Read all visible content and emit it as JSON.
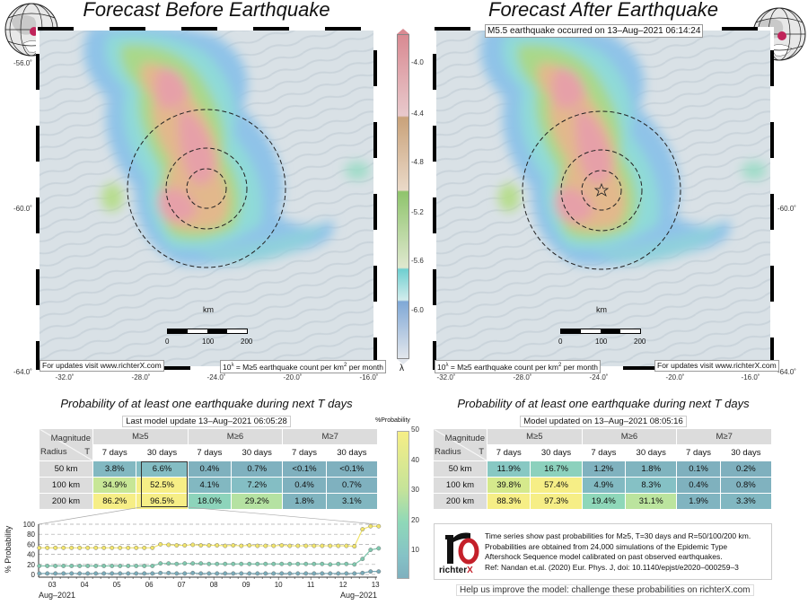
{
  "left": {
    "title": "Forecast Before Earthquake",
    "updates_note": "For updates visit www.richterX.com",
    "lambda_note_prefix": "10",
    "lambda_note_sup": "λ",
    "lambda_note_text": " = M≥5 earthquake count per km",
    "lambda_note_sup2": "2",
    "lambda_note_end": " per month",
    "prob_title": "Probability of at least one earthquake during next T days",
    "model_update": "Last model update 13–Aug–2021 06:05:28",
    "table": {
      "corner_top": "Magnitude",
      "corner_radius": "Radius",
      "corner_t": "T",
      "magnitudes": [
        "M≥5",
        "M≥6",
        "M≥7"
      ],
      "periods": [
        "7 days",
        "30 days",
        "7 days",
        "30 days",
        "7 days",
        "30 days"
      ],
      "rows": [
        {
          "radius": "50 km",
          "values": [
            "3.8%",
            "6.6%",
            "0.4%",
            "0.7%",
            "<0.1%",
            "<0.1%"
          ]
        },
        {
          "radius": "100 km",
          "values": [
            "34.9%",
            "52.5%",
            "4.1%",
            "7.2%",
            "0.4%",
            "0.7%"
          ]
        },
        {
          "radius": "200 km",
          "values": [
            "86.2%",
            "96.5%",
            "18.0%",
            "29.2%",
            "1.8%",
            "3.1%"
          ]
        }
      ]
    }
  },
  "right": {
    "title": "Forecast After Earthquake",
    "event_note": "M5.5 earthquake occurred on 13–Aug–2021 06:14:24",
    "updates_note": "For updates visit www.richterX.com",
    "prob_title": "Probability of at least one earthquake during next T days",
    "model_update": "Model updated on 13–Aug–2021 08:05:16",
    "table": {
      "rows": [
        {
          "radius": "50 km",
          "values": [
            "11.9%",
            "16.7%",
            "1.2%",
            "1.8%",
            "0.1%",
            "0.2%"
          ]
        },
        {
          "radius": "100 km",
          "values": [
            "39.8%",
            "57.4%",
            "4.9%",
            "8.3%",
            "0.4%",
            "0.8%"
          ]
        },
        {
          "radius": "200 km",
          "values": [
            "88.3%",
            "97.3%",
            "19.4%",
            "31.1%",
            "1.9%",
            "3.3%"
          ]
        }
      ]
    }
  },
  "map_axes": {
    "lon_labels": [
      "-32.0˚",
      "-28.0˚",
      "-24.0˚",
      "-20.0˚",
      "-16.0˚"
    ],
    "lat_labels": [
      "-56.0˚",
      "-60.0˚",
      "-64.0˚"
    ],
    "scale_unit": "km",
    "scale_labels": [
      "0",
      "100",
      "200"
    ]
  },
  "lambda_colorbar": {
    "label": "λ",
    "ticks": [
      "-4.0",
      "-4.4",
      "-4.8",
      "-5.2",
      "-5.6",
      "-6.0"
    ]
  },
  "prob_colorbar": {
    "label": "%Probability",
    "ticks": [
      "50",
      "40",
      "30",
      "20",
      "10"
    ]
  },
  "chart_data": {
    "type": "line",
    "ylabel": "% Probability",
    "ylim": [
      0,
      100
    ],
    "yticks": [
      "0",
      "20",
      "40",
      "60",
      "80",
      "100"
    ],
    "xticks": [
      "03",
      "04",
      "05",
      "06",
      "07",
      "08",
      "09",
      "10",
      "11",
      "12",
      "13"
    ],
    "xtick_days": [
      3,
      4,
      5,
      6,
      7,
      8,
      9,
      10,
      11,
      12,
      13
    ],
    "xlabel_left": "Aug–2021",
    "xlabel_right": "Aug–2021",
    "x_start_day": 2.6,
    "x_step_days": 0.25,
    "grid": true,
    "series": [
      {
        "name": "R=200 km",
        "color": "#f2e56b",
        "values": [
          53,
          53,
          53,
          53,
          53,
          53,
          53,
          53,
          53,
          53,
          53,
          53,
          53,
          53,
          53,
          60,
          59,
          58,
          58,
          59,
          58,
          58,
          58,
          57,
          58,
          57,
          58,
          57,
          57,
          57,
          58,
          57,
          57,
          57,
          57,
          57,
          57,
          57,
          57,
          56,
          90,
          96,
          96
        ]
      },
      {
        "name": "R=100 km",
        "color": "#7fc8ae",
        "values": [
          17,
          17,
          17,
          17,
          17,
          17,
          17,
          17,
          17,
          17,
          17,
          17,
          17,
          17,
          17,
          22,
          22,
          21,
          22,
          22,
          22,
          21,
          21,
          21,
          21,
          21,
          21,
          21,
          21,
          21,
          21,
          21,
          21,
          21,
          21,
          21,
          20,
          21,
          21,
          20,
          31,
          49,
          52
        ]
      },
      {
        "name": "R=50 km",
        "color": "#78aab8",
        "values": [
          2,
          2,
          2,
          2,
          2,
          2,
          2,
          2,
          2,
          2,
          2,
          2,
          2,
          2,
          2,
          3,
          3,
          2,
          2,
          3,
          2,
          2,
          2,
          2,
          2,
          2,
          2,
          2,
          2,
          2,
          2,
          2,
          2,
          2,
          2,
          2,
          2,
          2,
          2,
          2,
          3,
          6,
          6
        ]
      }
    ]
  },
  "info": {
    "logo_text_main": "richter",
    "logo_text_x": "X",
    "lines": [
      "Time series show past probabilities for M≥5, T=30 days and R=50/100/200 km.",
      "Probabilities are obtained from 24,000 simulations of the Epidemic Type",
      "Aftershock Sequence model calibrated on past observed earthquakes.",
      "Ref: Nandan et.al. (2020) Eur. Phys. J, doi: 10.1140/epjst/e2020–000259–3"
    ],
    "help": "Help us improve the model: challenge these probabilities on richterX.com"
  }
}
